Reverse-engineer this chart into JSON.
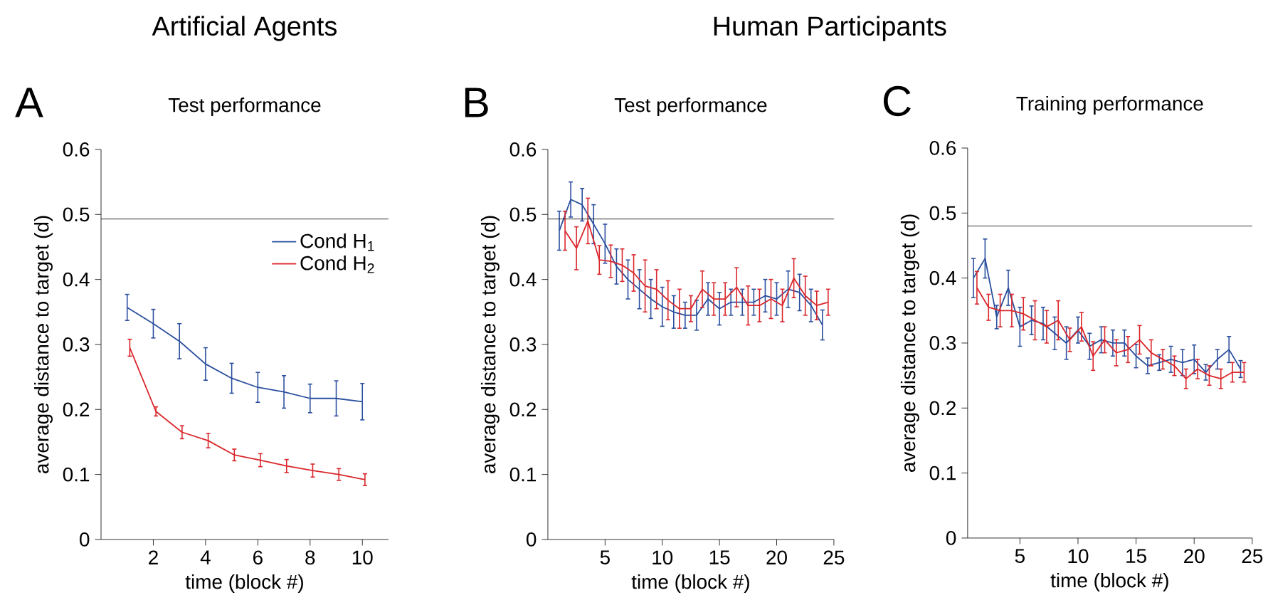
{
  "chart_data": [
    {
      "type": "line",
      "title": "Test performance",
      "xlabel": "time (block #)",
      "ylabel": "average distance to target (d)",
      "annotations": [
        "A",
        "Artificial Agents"
      ],
      "xlim": [
        0,
        11
      ],
      "ylim": [
        0,
        0.6
      ],
      "xticks": [
        2,
        4,
        6,
        8,
        10
      ],
      "yticks": [
        0,
        0.1,
        0.2,
        0.3,
        0.4,
        0.5,
        0.6
      ],
      "legend": "top right",
      "grid": false,
      "ref_lines": [
        {
          "axis": "y",
          "value": 0.493,
          "color": "#000000"
        }
      ],
      "series": [
        {
          "name": "Cond H$_{1}$",
          "color": "#2b4f9e",
          "x": [
            1,
            2,
            3,
            4,
            5,
            6,
            7,
            8,
            9,
            10
          ],
          "values": [
            0.357,
            0.332,
            0.305,
            0.27,
            0.248,
            0.234,
            0.227,
            0.217,
            0.217,
            0.212
          ],
          "errors": [
            0.02,
            0.022,
            0.027,
            0.025,
            0.023,
            0.023,
            0.025,
            0.022,
            0.027,
            0.028
          ]
        },
        {
          "name": "Cond H$_{2}$",
          "color": "#d9262b",
          "x": [
            1.1,
            2.1,
            3.1,
            4.1,
            5.1,
            6.1,
            7.1,
            8.1,
            9.1,
            10.1
          ],
          "values": [
            0.295,
            0.197,
            0.165,
            0.152,
            0.13,
            0.122,
            0.113,
            0.106,
            0.1,
            0.092
          ],
          "errors": [
            0.013,
            0.007,
            0.01,
            0.011,
            0.009,
            0.01,
            0.01,
            0.01,
            0.009,
            0.009
          ]
        }
      ]
    },
    {
      "type": "line",
      "title": "Test performance",
      "xlabel": "time (block #)",
      "ylabel": "average distance to target (d)",
      "annotations": [
        "B",
        "Human Participants"
      ],
      "xlim": [
        0,
        25
      ],
      "ylim": [
        0,
        0.6
      ],
      "xticks": [
        5,
        10,
        15,
        20,
        25
      ],
      "yticks": [
        0,
        0.1,
        0.2,
        0.3,
        0.4,
        0.5,
        0.6
      ],
      "grid": false,
      "ref_lines": [
        {
          "axis": "y",
          "value": 0.493,
          "color": "#000000"
        }
      ],
      "series": [
        {
          "color": "#2b4f9e",
          "x": [
            1,
            2,
            3,
            4,
            5,
            6,
            7,
            8,
            9,
            10,
            11,
            12,
            13,
            14,
            15,
            16,
            17,
            18,
            19,
            20,
            21,
            22,
            23,
            24
          ],
          "values": [
            0.475,
            0.523,
            0.515,
            0.485,
            0.455,
            0.42,
            0.4,
            0.385,
            0.37,
            0.358,
            0.35,
            0.345,
            0.345,
            0.37,
            0.355,
            0.365,
            0.365,
            0.365,
            0.375,
            0.37,
            0.385,
            0.38,
            0.36,
            0.33
          ],
          "errors": [
            0.03,
            0.027,
            0.025,
            0.03,
            0.03,
            0.027,
            0.03,
            0.03,
            0.03,
            0.03,
            0.025,
            0.02,
            0.023,
            0.025,
            0.025,
            0.02,
            0.02,
            0.02,
            0.025,
            0.025,
            0.028,
            0.028,
            0.025,
            0.023
          ]
        },
        {
          "color": "#d9262b",
          "x": [
            1.5,
            2.5,
            3.5,
            4.5,
            5.5,
            6.5,
            7.5,
            8.5,
            9.5,
            10.5,
            11.5,
            12.5,
            13.5,
            14.5,
            15.5,
            16.5,
            17.5,
            18.5,
            19.5,
            20.5,
            21.5,
            22.5,
            23.5,
            24.5
          ],
          "values": [
            0.475,
            0.448,
            0.49,
            0.43,
            0.428,
            0.422,
            0.41,
            0.39,
            0.385,
            0.368,
            0.355,
            0.355,
            0.385,
            0.37,
            0.37,
            0.388,
            0.36,
            0.36,
            0.37,
            0.36,
            0.402,
            0.375,
            0.36,
            0.365
          ],
          "errors": [
            0.03,
            0.033,
            0.035,
            0.022,
            0.025,
            0.025,
            0.028,
            0.04,
            0.03,
            0.03,
            0.03,
            0.02,
            0.028,
            0.025,
            0.025,
            0.03,
            0.03,
            0.025,
            0.03,
            0.025,
            0.03,
            0.03,
            0.022,
            0.02
          ]
        }
      ]
    },
    {
      "type": "line",
      "title": "Training performance",
      "xlabel": "time (block #)",
      "ylabel": "average distance to target (d)",
      "annotations": [
        "C"
      ],
      "xlim": [
        0.5,
        25
      ],
      "ylim": [
        0,
        0.6
      ],
      "xticks": [
        5,
        10,
        15,
        20,
        25
      ],
      "yticks": [
        0,
        0.1,
        0.2,
        0.3,
        0.4,
        0.5,
        0.6
      ],
      "grid": false,
      "ref_lines": [
        {
          "axis": "y",
          "value": 0.48,
          "color": "#000000"
        }
      ],
      "series": [
        {
          "color": "#2b4f9e",
          "x": [
            1,
            2,
            3,
            4,
            5,
            6,
            7,
            8,
            9,
            10,
            11,
            12,
            13,
            14,
            15,
            16,
            17,
            18,
            19,
            20,
            21,
            22,
            23,
            24
          ],
          "values": [
            0.4,
            0.43,
            0.34,
            0.385,
            0.325,
            0.335,
            0.33,
            0.315,
            0.3,
            0.32,
            0.295,
            0.305,
            0.3,
            0.3,
            0.28,
            0.265,
            0.27,
            0.275,
            0.27,
            0.275,
            0.255,
            0.275,
            0.29,
            0.26
          ],
          "errors": [
            0.03,
            0.03,
            0.018,
            0.027,
            0.03,
            0.022,
            0.025,
            0.025,
            0.025,
            0.02,
            0.02,
            0.02,
            0.02,
            0.02,
            0.018,
            0.012,
            0.012,
            0.02,
            0.02,
            0.022,
            0.012,
            0.015,
            0.02,
            0.013
          ]
        },
        {
          "color": "#d9262b",
          "x": [
            1.3,
            2.3,
            3.3,
            4.3,
            5.3,
            6.3,
            7.3,
            8.3,
            9.3,
            10.3,
            11.3,
            12.3,
            13.3,
            14.3,
            15.3,
            16.3,
            17.3,
            18.3,
            19.3,
            20.3,
            21.3,
            22.3,
            23.3,
            24.3
          ],
          "values": [
            0.385,
            0.355,
            0.35,
            0.35,
            0.345,
            0.335,
            0.325,
            0.335,
            0.305,
            0.325,
            0.28,
            0.305,
            0.285,
            0.29,
            0.305,
            0.285,
            0.275,
            0.265,
            0.245,
            0.26,
            0.25,
            0.245,
            0.255,
            0.255
          ],
          "errors": [
            0.025,
            0.02,
            0.025,
            0.025,
            0.025,
            0.03,
            0.025,
            0.03,
            0.018,
            0.022,
            0.022,
            0.02,
            0.02,
            0.02,
            0.022,
            0.02,
            0.015,
            0.015,
            0.015,
            0.015,
            0.015,
            0.015,
            0.015,
            0.015
          ]
        }
      ]
    }
  ]
}
